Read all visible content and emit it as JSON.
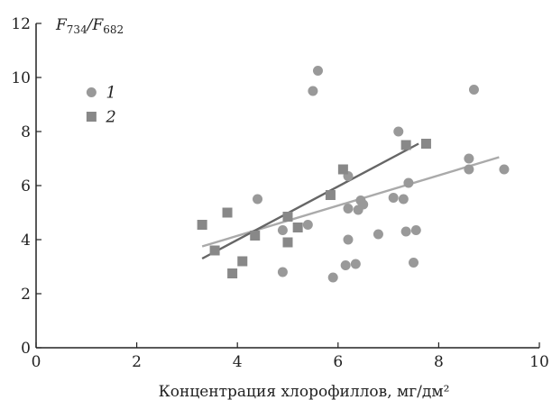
{
  "chart_data": {
    "type": "scatter",
    "xlabel": "Концентрация хлорофиллов, мг/дм²",
    "ylabel": {
      "main": "F",
      "num_sub": "734",
      "sep": "/",
      "den": "F",
      "den_sub": "682"
    },
    "xlim": [
      0,
      10
    ],
    "ylim": [
      0,
      12
    ],
    "xticks": [
      0,
      2,
      4,
      6,
      8,
      10
    ],
    "yticks": [
      0,
      2,
      4,
      6,
      8,
      10,
      12
    ],
    "grid": false,
    "legend_position": "top-left",
    "series": [
      {
        "name": "1",
        "marker": "circle",
        "color": "#999999",
        "points": [
          [
            4.4,
            5.5
          ],
          [
            4.9,
            4.35
          ],
          [
            4.9,
            2.8
          ],
          [
            5.4,
            4.55
          ],
          [
            5.5,
            9.5
          ],
          [
            5.6,
            10.25
          ],
          [
            5.9,
            2.6
          ],
          [
            6.15,
            3.05
          ],
          [
            6.2,
            4.0
          ],
          [
            6.2,
            5.15
          ],
          [
            6.2,
            6.35
          ],
          [
            6.35,
            3.1
          ],
          [
            6.4,
            5.1
          ],
          [
            6.45,
            5.45
          ],
          [
            6.5,
            5.3
          ],
          [
            6.8,
            4.2
          ],
          [
            7.1,
            5.55
          ],
          [
            7.2,
            8.0
          ],
          [
            7.3,
            5.5
          ],
          [
            7.35,
            4.3
          ],
          [
            7.4,
            6.1
          ],
          [
            7.5,
            3.15
          ],
          [
            7.55,
            4.35
          ],
          [
            8.6,
            7.0
          ],
          [
            8.6,
            6.6
          ],
          [
            8.7,
            9.55
          ],
          [
            9.3,
            6.6
          ]
        ],
        "fit": {
          "x": [
            3.3,
            9.2
          ],
          "y": [
            3.75,
            7.05
          ],
          "color": "#aaaaaa"
        }
      },
      {
        "name": "2",
        "marker": "square",
        "color": "#888888",
        "points": [
          [
            3.3,
            4.55
          ],
          [
            3.55,
            3.6
          ],
          [
            3.8,
            5.0
          ],
          [
            3.9,
            2.75
          ],
          [
            4.1,
            3.2
          ],
          [
            4.35,
            4.15
          ],
          [
            5.0,
            4.85
          ],
          [
            5.0,
            3.9
          ],
          [
            5.2,
            4.45
          ],
          [
            5.85,
            5.65
          ],
          [
            6.1,
            6.6
          ],
          [
            7.35,
            7.5
          ],
          [
            7.75,
            7.55
          ]
        ],
        "fit": {
          "x": [
            3.3,
            7.6
          ],
          "y": [
            3.3,
            7.55
          ],
          "color": "#666666"
        }
      }
    ]
  }
}
